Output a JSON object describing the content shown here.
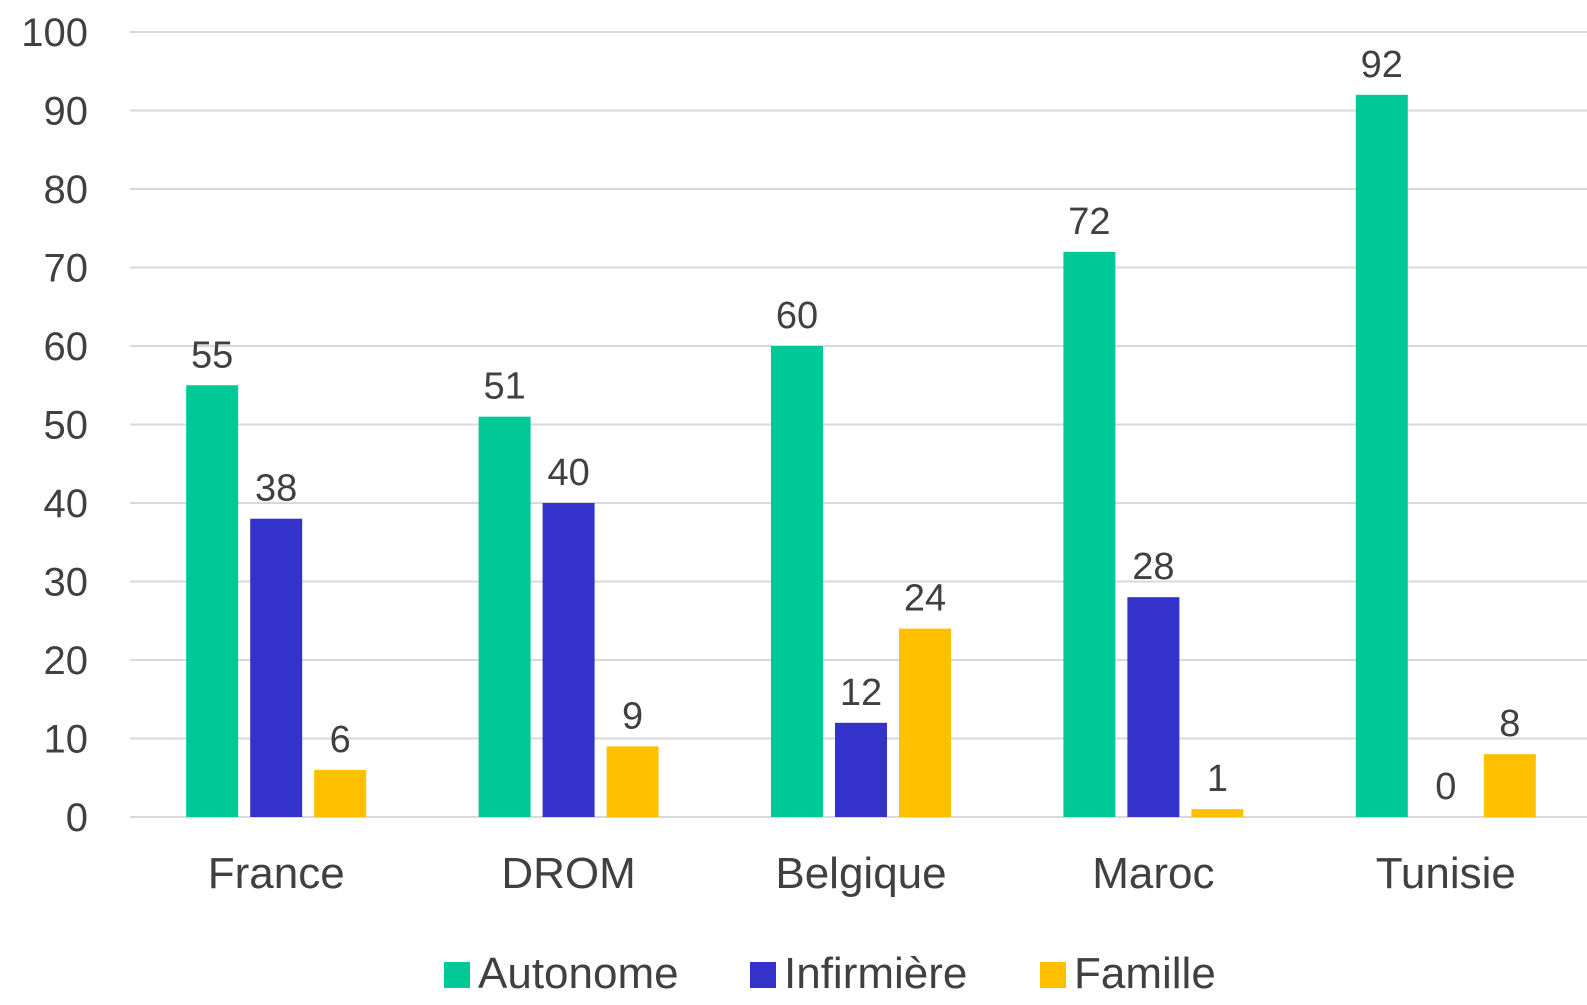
{
  "chart_data": {
    "type": "bar",
    "categories": [
      "France",
      "DROM",
      "Belgique",
      "Maroc",
      "Tunisie"
    ],
    "series": [
      {
        "name": "Autonome",
        "values": [
          55,
          51,
          60,
          72,
          92
        ],
        "color": "#00c896"
      },
      {
        "name": "Infirmière",
        "values": [
          38,
          40,
          12,
          28,
          0
        ],
        "color": "#3333cc"
      },
      {
        "name": "Famille",
        "values": [
          6,
          9,
          24,
          1,
          8
        ],
        "color": "#ffc000"
      }
    ],
    "ylim": [
      0,
      100
    ],
    "yticks": [
      0,
      10,
      20,
      30,
      40,
      50,
      60,
      70,
      80,
      90,
      100
    ],
    "grid": true,
    "legend_position": "bottom",
    "title": "",
    "xlabel": "",
    "ylabel": ""
  }
}
